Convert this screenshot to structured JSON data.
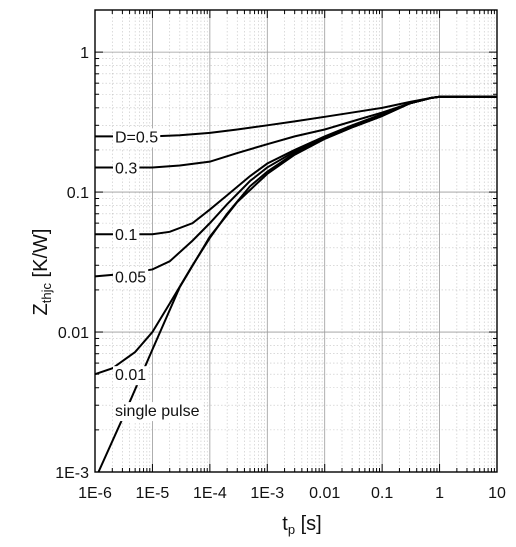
{
  "chart_data": {
    "type": "line",
    "xscale": "log",
    "yscale": "log",
    "xlim": [
      1e-06,
      10
    ],
    "ylim": [
      0.001,
      2
    ],
    "grid": true,
    "xlabel": {
      "main": "t",
      "sub": "p",
      "unit": " [s]"
    },
    "ylabel": {
      "main": "Z",
      "sub": "thjc",
      "unit": " [K/W]"
    },
    "x_ticks": [
      {
        "value": 1e-06,
        "label": "1E-6"
      },
      {
        "value": 1e-05,
        "label": "1E-5"
      },
      {
        "value": 0.0001,
        "label": "1E-4"
      },
      {
        "value": 0.001,
        "label": "1E-3"
      },
      {
        "value": 0.01,
        "label": "0.01"
      },
      {
        "value": 0.1,
        "label": "0.1"
      },
      {
        "value": 1,
        "label": "1"
      },
      {
        "value": 10,
        "label": "10"
      }
    ],
    "y_ticks": [
      {
        "value": 0.001,
        "label": "1E-3"
      },
      {
        "value": 0.01,
        "label": "0.01"
      },
      {
        "value": 0.1,
        "label": "0.1"
      },
      {
        "value": 1,
        "label": "1"
      }
    ],
    "series": [
      {
        "name": "D=0.5",
        "label_at": [
          1e-06,
          0.25
        ],
        "points": [
          [
            1e-06,
            0.25
          ],
          [
            1e-05,
            0.25
          ],
          [
            3e-05,
            0.255
          ],
          [
            0.0001,
            0.265
          ],
          [
            0.0003,
            0.28
          ],
          [
            0.001,
            0.3
          ],
          [
            0.003,
            0.32
          ],
          [
            0.01,
            0.345
          ],
          [
            0.03,
            0.37
          ],
          [
            0.1,
            0.4
          ],
          [
            0.3,
            0.44
          ],
          [
            0.7,
            0.47
          ],
          [
            1,
            0.48
          ],
          [
            10,
            0.48
          ]
        ]
      },
      {
        "name": "0.3",
        "label_at": [
          1e-06,
          0.15
        ],
        "points": [
          [
            1e-06,
            0.15
          ],
          [
            1e-05,
            0.15
          ],
          [
            3e-05,
            0.155
          ],
          [
            0.0001,
            0.165
          ],
          [
            0.0003,
            0.19
          ],
          [
            0.001,
            0.22
          ],
          [
            0.003,
            0.25
          ],
          [
            0.01,
            0.28
          ],
          [
            0.03,
            0.32
          ],
          [
            0.1,
            0.37
          ],
          [
            0.3,
            0.43
          ],
          [
            0.7,
            0.47
          ],
          [
            1,
            0.48
          ],
          [
            10,
            0.48
          ]
        ]
      },
      {
        "name": "0.1",
        "label_at": [
          1e-06,
          0.05
        ],
        "points": [
          [
            1e-06,
            0.05
          ],
          [
            1e-05,
            0.05
          ],
          [
            2e-05,
            0.052
          ],
          [
            5e-05,
            0.06
          ],
          [
            0.0001,
            0.075
          ],
          [
            0.0002,
            0.095
          ],
          [
            0.0005,
            0.13
          ],
          [
            0.001,
            0.16
          ],
          [
            0.003,
            0.2
          ],
          [
            0.01,
            0.25
          ],
          [
            0.03,
            0.3
          ],
          [
            0.1,
            0.36
          ],
          [
            0.3,
            0.43
          ],
          [
            0.7,
            0.47
          ],
          [
            1,
            0.48
          ],
          [
            10,
            0.48
          ]
        ]
      },
      {
        "name": "0.05",
        "label_at": [
          1e-06,
          0.025
        ],
        "points": [
          [
            1e-06,
            0.025
          ],
          [
            3e-06,
            0.026
          ],
          [
            1e-05,
            0.028
          ],
          [
            2e-05,
            0.032
          ],
          [
            5e-05,
            0.045
          ],
          [
            0.0001,
            0.06
          ],
          [
            0.0002,
            0.082
          ],
          [
            0.0005,
            0.12
          ],
          [
            0.001,
            0.15
          ],
          [
            0.003,
            0.195
          ],
          [
            0.01,
            0.245
          ],
          [
            0.03,
            0.295
          ],
          [
            0.1,
            0.355
          ],
          [
            0.3,
            0.43
          ],
          [
            0.7,
            0.47
          ],
          [
            1,
            0.48
          ],
          [
            10,
            0.48
          ]
        ]
      },
      {
        "name": "0.01",
        "label_at": [
          1e-06,
          0.005
        ],
        "points": [
          [
            1e-06,
            0.005
          ],
          [
            2e-06,
            0.0055
          ],
          [
            5e-06,
            0.0072
          ],
          [
            1e-05,
            0.01
          ],
          [
            2e-05,
            0.016
          ],
          [
            5e-05,
            0.03
          ],
          [
            0.0001,
            0.047
          ],
          [
            0.0002,
            0.07
          ],
          [
            0.0005,
            0.11
          ],
          [
            0.001,
            0.14
          ],
          [
            0.003,
            0.19
          ],
          [
            0.01,
            0.24
          ],
          [
            0.03,
            0.29
          ],
          [
            0.1,
            0.35
          ],
          [
            0.3,
            0.43
          ],
          [
            0.7,
            0.47
          ],
          [
            1,
            0.48
          ],
          [
            10,
            0.48
          ]
        ]
      },
      {
        "name": "single pulse",
        "label_at": [
          1e-06,
          0.0022
        ],
        "points": [
          [
            1.15e-06,
            0.001
          ],
          [
            3e-06,
            0.0024
          ],
          [
            1e-05,
            0.0075
          ],
          [
            3e-05,
            0.021
          ],
          [
            0.0001,
            0.048
          ],
          [
            0.0003,
            0.085
          ],
          [
            0.001,
            0.135
          ],
          [
            0.003,
            0.185
          ],
          [
            0.01,
            0.24
          ],
          [
            0.03,
            0.29
          ],
          [
            0.1,
            0.35
          ],
          [
            0.3,
            0.43
          ],
          [
            0.7,
            0.47
          ],
          [
            1,
            0.48
          ],
          [
            10,
            0.48
          ]
        ]
      }
    ]
  }
}
